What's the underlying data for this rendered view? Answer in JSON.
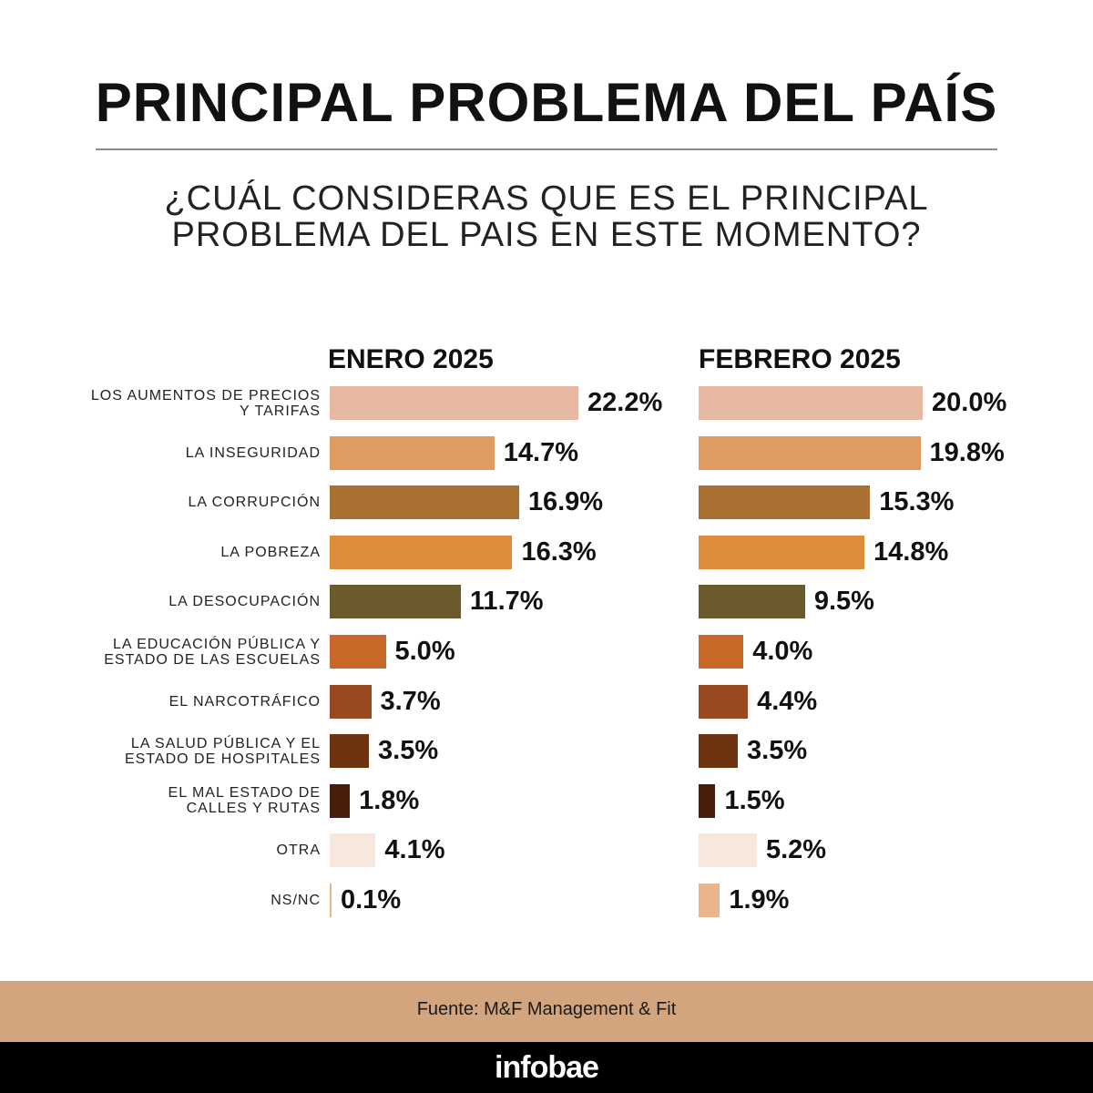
{
  "header": {
    "title": "PRINCIPAL PROBLEMA DEL PAÍS",
    "subtitle_line1": "¿CUÁL CONSIDERAS QUE ES EL PRINCIPAL",
    "subtitle_line2": "PROBLEMA DEL PAIS EN ESTE MOMENTO?"
  },
  "footer": {
    "source": "Fuente: M&F Management & Fit",
    "logo": "infobae"
  },
  "chart_data": {
    "type": "bar",
    "orientation": "horizontal",
    "title": "PRINCIPAL PROBLEMA DEL PAÍS",
    "subtitle": "¿CUÁL CONSIDERAS QUE ES EL PRINCIPAL PROBLEMA DEL PAIS EN ESTE MOMENTO?",
    "categories": [
      [
        "LOS AUMENTOS DE PRECIOS",
        "Y TARIFAS"
      ],
      [
        "LA INSEGURIDAD"
      ],
      [
        "LA CORRUPCIÓN"
      ],
      [
        "LA POBREZA"
      ],
      [
        "LA DESOCUPACIÓN"
      ],
      [
        "LA EDUCACIÓN PÚBLICA Y",
        "ESTADO DE LAS ESCUELAS"
      ],
      [
        "EL NARCOTRÁFICO"
      ],
      [
        "LA SALUD PÚBLICA Y EL",
        "ESTADO DE HOSPITALES"
      ],
      [
        "EL MAL ESTADO DE",
        "CALLES Y RUTAS"
      ],
      [
        "OTRA"
      ],
      [
        "NS/NC"
      ]
    ],
    "colors": [
      "#e8b9a2",
      "#e09b60",
      "#a87131",
      "#dd8c3a",
      "#6b5a2c",
      "#c8692a",
      "#98491f",
      "#6e3412",
      "#4a1e0b",
      "#f7e7dd",
      "#e8b48c"
    ],
    "series": [
      {
        "name": "ENERO 2025",
        "values": [
          22.2,
          14.7,
          16.9,
          16.3,
          11.7,
          5.0,
          3.7,
          3.5,
          1.8,
          4.1,
          0.1
        ],
        "labels": [
          "22.2%",
          "14.7%",
          "16.9%",
          "16.3%",
          "11.7%",
          "5.0%",
          "3.7%",
          "3.5%",
          "1.8%",
          "4.1%",
          "0.1%"
        ]
      },
      {
        "name": "FEBRERO 2025",
        "values": [
          20.0,
          19.8,
          15.3,
          14.8,
          9.5,
          4.0,
          4.4,
          3.5,
          1.5,
          5.2,
          1.9
        ],
        "labels": [
          "20.0%",
          "19.8%",
          "15.3%",
          "14.8%",
          "9.5%",
          "4.0%",
          "4.4%",
          "3.5%",
          "1.5%",
          "5.2%",
          "1.9%"
        ]
      }
    ],
    "unit": "%",
    "grid": false,
    "legend": "none"
  }
}
